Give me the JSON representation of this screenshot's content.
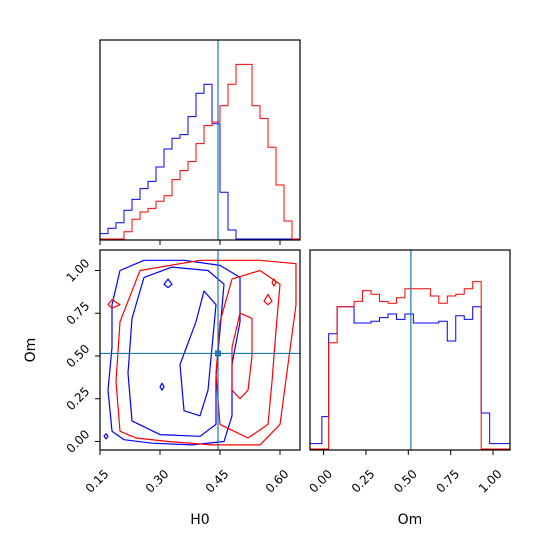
{
  "chart_data": {
    "type": "corner",
    "parameters": [
      "H0",
      "Om"
    ],
    "truths": {
      "H0": 0.445,
      "Om": 0.515
    },
    "colors": {
      "blue": "#0000ff",
      "red": "#ff0000",
      "truth": "#1f77b4"
    },
    "grid": false,
    "panels": [
      {
        "name": "H0-marginal",
        "type": "histogram",
        "xlim": [
          0.15,
          0.65
        ],
        "xticks": [
          0.15,
          0.3,
          0.45,
          0.6
        ],
        "x_tick_labels_shown": false,
        "y_tick_labels_shown": false,
        "bin_edges": [
          0.15,
          0.17,
          0.19,
          0.21,
          0.23,
          0.25,
          0.27,
          0.29,
          0.31,
          0.33,
          0.35,
          0.37,
          0.39,
          0.41,
          0.43,
          0.45,
          0.47,
          0.49,
          0.51,
          0.53,
          0.55,
          0.57,
          0.59,
          0.61,
          0.63,
          0.65
        ],
        "series": [
          {
            "color": "blue",
            "counts": [
              0.03,
              0.06,
              0.09,
              0.16,
              0.22,
              0.28,
              0.32,
              0.4,
              0.5,
              0.56,
              0.58,
              0.68,
              0.81,
              0.86,
              0.64,
              0.26,
              0.05,
              0.0,
              0.0,
              0.0,
              0.0,
              0.0,
              0.0,
              0.0,
              0.0
            ]
          },
          {
            "color": "red",
            "counts": [
              0.0,
              0.0,
              0.0,
              0.04,
              0.11,
              0.15,
              0.17,
              0.21,
              0.24,
              0.33,
              0.38,
              0.43,
              0.53,
              0.63,
              0.65,
              0.74,
              0.86,
              0.97,
              0.97,
              0.74,
              0.67,
              0.51,
              0.3,
              0.1,
              0.0
            ]
          }
        ]
      },
      {
        "name": "H0-Om-joint",
        "type": "contour",
        "xlim": [
          0.15,
          0.65
        ],
        "ylim": [
          -0.05,
          1.12
        ],
        "xticks": [
          0.15,
          0.3,
          0.45,
          0.6
        ],
        "x_tick_labels": [
          "0.15",
          "0.30",
          "0.45",
          "0.60"
        ],
        "yticks": [
          0.0,
          0.25,
          0.5,
          0.75,
          1.0
        ],
        "y_tick_labels": [
          "0.00",
          "0.25",
          "0.50",
          "0.75",
          "1.00"
        ],
        "xlabel": "H0",
        "ylabel": "Om",
        "series": [
          {
            "color": "blue",
            "contours": [
              [
                [
                  0.18,
                  0.06
                ],
                [
                  0.17,
                  0.3
                ],
                [
                  0.18,
                  0.55
                ],
                [
                  0.18,
                  0.8
                ],
                [
                  0.2,
                  1.0
                ],
                [
                  0.26,
                  1.06
                ],
                [
                  0.36,
                  1.06
                ],
                [
                  0.45,
                  1.03
                ],
                [
                  0.5,
                  0.96
                ],
                [
                  0.5,
                  0.7
                ],
                [
                  0.48,
                  0.45
                ],
                [
                  0.48,
                  0.15
                ],
                [
                  0.46,
                  0.0
                ],
                [
                  0.38,
                  -0.02
                ],
                [
                  0.28,
                  -0.01
                ],
                [
                  0.21,
                  0.01
                ]
              ],
              [
                [
                  0.23,
                  0.12
                ],
                [
                  0.22,
                  0.4
                ],
                [
                  0.23,
                  0.72
                ],
                [
                  0.26,
                  0.96
                ],
                [
                  0.33,
                  1.02
                ],
                [
                  0.42,
                  1.0
                ],
                [
                  0.46,
                  0.92
                ],
                [
                  0.45,
                  0.65
                ],
                [
                  0.44,
                  0.38
                ],
                [
                  0.44,
                  0.1
                ],
                [
                  0.4,
                  0.03
                ],
                [
                  0.3,
                  0.04
                ]
              ],
              [
                [
                  0.36,
                  0.18
                ],
                [
                  0.35,
                  0.45
                ],
                [
                  0.39,
                  0.7
                ],
                [
                  0.41,
                  0.88
                ],
                [
                  0.44,
                  0.8
                ],
                [
                  0.43,
                  0.55
                ],
                [
                  0.42,
                  0.3
                ],
                [
                  0.4,
                  0.15
                ]
              ],
              [
                [
                  0.16,
                  0.03
                ],
                [
                  0.165,
                  0.045
                ],
                [
                  0.17,
                  0.03
                ],
                [
                  0.165,
                  0.015
                ]
              ],
              [
                [
                  0.31,
                  0.92
                ],
                [
                  0.32,
                  0.95
                ],
                [
                  0.33,
                  0.92
                ],
                [
                  0.32,
                  0.9
                ]
              ],
              [
                [
                  0.3,
                  0.32
                ],
                [
                  0.305,
                  0.34
                ],
                [
                  0.31,
                  0.32
                ],
                [
                  0.305,
                  0.3
                ]
              ]
            ]
          },
          {
            "color": "red",
            "contours": [
              [
                [
                  0.2,
                  0.06
                ],
                [
                  0.19,
                  0.35
                ],
                [
                  0.2,
                  0.7
                ],
                [
                  0.25,
                  1.0
                ],
                [
                  0.4,
                  1.06
                ],
                [
                  0.55,
                  1.06
                ],
                [
                  0.64,
                  1.04
                ],
                [
                  0.64,
                  0.8
                ],
                [
                  0.62,
                  0.45
                ],
                [
                  0.6,
                  0.1
                ],
                [
                  0.55,
                  -0.02
                ],
                [
                  0.43,
                  -0.02
                ],
                [
                  0.32,
                  0.0
                ],
                [
                  0.24,
                  0.02
                ]
              ],
              [
                [
                  0.45,
                  0.1
                ],
                [
                  0.44,
                  0.4
                ],
                [
                  0.45,
                  0.7
                ],
                [
                  0.48,
                  0.95
                ],
                [
                  0.55,
                  1.0
                ],
                [
                  0.6,
                  0.92
                ],
                [
                  0.59,
                  0.65
                ],
                [
                  0.58,
                  0.35
                ],
                [
                  0.57,
                  0.1
                ],
                [
                  0.52,
                  0.02
                ]
              ],
              [
                [
                  0.48,
                  0.3
                ],
                [
                  0.48,
                  0.55
                ],
                [
                  0.5,
                  0.75
                ],
                [
                  0.53,
                  0.72
                ],
                [
                  0.53,
                  0.5
                ],
                [
                  0.52,
                  0.3
                ],
                [
                  0.5,
                  0.25
                ]
              ],
              [
                [
                  0.17,
                  0.8
                ],
                [
                  0.18,
                  0.83
                ],
                [
                  0.2,
                  0.8
                ],
                [
                  0.18,
                  0.78
                ]
              ],
              [
                [
                  0.56,
                  0.82
                ],
                [
                  0.57,
                  0.86
                ],
                [
                  0.58,
                  0.82
                ],
                [
                  0.57,
                  0.8
                ]
              ],
              [
                [
                  0.58,
                  0.93
                ],
                [
                  0.585,
                  0.95
                ],
                [
                  0.59,
                  0.93
                ],
                [
                  0.585,
                  0.91
                ]
              ]
            ]
          }
        ]
      },
      {
        "name": "Om-marginal",
        "type": "histogram",
        "xlim": [
          -0.08,
          1.1
        ],
        "xticks": [
          0.0,
          0.25,
          0.5,
          0.75,
          1.0
        ],
        "x_tick_labels": [
          "0.00",
          "0.25",
          "0.50",
          "0.75",
          "1.00"
        ],
        "xlabel": "Om",
        "y_tick_labels_shown": false,
        "bin_edges": [
          -0.08,
          -0.01,
          0.03,
          0.08,
          0.13,
          0.18,
          0.23,
          0.28,
          0.33,
          0.38,
          0.43,
          0.48,
          0.53,
          0.58,
          0.63,
          0.68,
          0.73,
          0.78,
          0.83,
          0.88,
          0.93,
          0.98,
          1.03,
          1.1
        ],
        "series": [
          {
            "color": "blue",
            "counts": [
              0.03,
              0.18,
              0.64,
              0.79,
              0.79,
              0.7,
              0.7,
              0.71,
              0.73,
              0.75,
              0.72,
              0.75,
              0.7,
              0.7,
              0.7,
              0.71,
              0.6,
              0.74,
              0.72,
              0.79,
              0.2,
              0.03,
              0.03
            ]
          },
          {
            "color": "red",
            "counts": [
              0.0,
              0.0,
              0.59,
              0.79,
              0.79,
              0.82,
              0.88,
              0.86,
              0.82,
              0.81,
              0.84,
              0.89,
              0.89,
              0.89,
              0.85,
              0.81,
              0.85,
              0.86,
              0.89,
              0.93,
              0.0,
              0.0,
              0.0
            ]
          }
        ]
      }
    ]
  }
}
